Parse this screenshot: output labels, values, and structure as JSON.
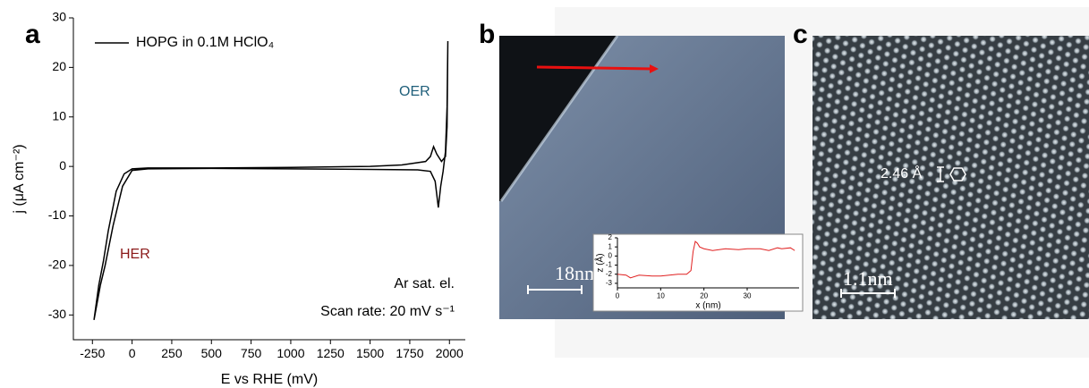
{
  "panel_labels": [
    "a",
    "b",
    "c"
  ],
  "chart_data": [
    {
      "type": "line",
      "x_label": "E vs RHE (mV)",
      "y_label": "j (μA cm⁻²)",
      "annotations": [
        "OER",
        "HER",
        "Ar sat. el.",
        "Scan rate: 20 mV s⁻¹"
      ],
      "x": [
        -240,
        -200,
        -170,
        -120,
        -60,
        0,
        100,
        500,
        1000,
        1500,
        1800,
        1880,
        1910,
        1930,
        1945,
        1960,
        1975,
        1985,
        1990,
        1985,
        1975,
        1950,
        1920,
        1900,
        1880,
        1850,
        1700,
        1500,
        1000,
        500,
        100,
        0,
        -50,
        -100,
        -150,
        -180,
        -210,
        -240
      ],
      "series": [
        {
          "name": "HOPG in 0.1M HClO₄",
          "color": "#000000",
          "values": [
            -31,
            -24,
            -20,
            -12,
            -4,
            -0.8,
            -0.5,
            -0.4,
            -0.5,
            -0.6,
            -0.7,
            -1,
            -3,
            -8.3,
            -4,
            -1,
            3,
            12,
            25.3,
            8,
            2,
            1,
            2.5,
            4,
            2,
            1,
            0.3,
            0,
            -0.2,
            -0.3,
            -0.3,
            -0.5,
            -1.5,
            -5,
            -13,
            -19,
            -24,
            -31
          ]
        }
      ],
      "xlim": [
        -370,
        2100
      ],
      "xticks": [
        -250,
        0,
        250,
        500,
        750,
        1000,
        1250,
        1500,
        1750,
        2000
      ],
      "ylim": [
        -35,
        30
      ],
      "yticks": [
        -30,
        -20,
        -10,
        0,
        10,
        20,
        30
      ],
      "legend": "upper left"
    },
    {
      "type": "line",
      "x_label": "x (nm)",
      "y_label": "z (Å)",
      "x": [
        0,
        2,
        3,
        5,
        8,
        10,
        12,
        14,
        16,
        17,
        17.5,
        18,
        18.5,
        19,
        20,
        22,
        25,
        28,
        30,
        33,
        35,
        37,
        38,
        40,
        41
      ],
      "series": [
        {
          "name": null,
          "color": "#e02020",
          "values": [
            -2.0,
            -2.1,
            -2.4,
            -2.1,
            -2.2,
            -2.2,
            -2.1,
            -2.0,
            -2.0,
            -1.6,
            0.5,
            1.6,
            1.4,
            1.0,
            0.8,
            0.6,
            0.8,
            0.7,
            0.8,
            0.8,
            0.6,
            0.9,
            0.8,
            0.9,
            0.6
          ]
        }
      ],
      "xlim": [
        0,
        42
      ],
      "xticks": [
        0,
        10,
        20,
        30
      ],
      "ylim": [
        -3.5,
        2
      ],
      "yticks": [
        -3,
        -2,
        -1,
        0,
        1,
        2
      ]
    }
  ],
  "image_b": {
    "scale_bar": "18nm"
  },
  "image_c": {
    "scale_bar": "1.1nm",
    "annotation": "2.46 Å"
  }
}
